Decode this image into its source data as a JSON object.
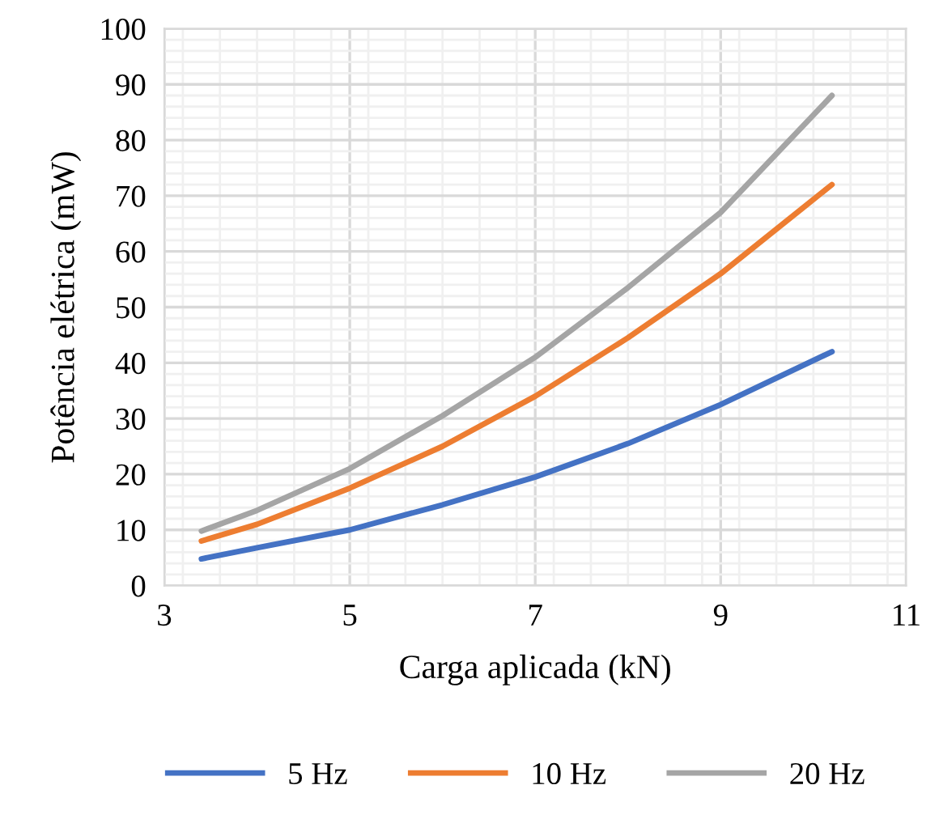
{
  "chart_data": {
    "type": "line",
    "xlabel": "Carga aplicada (kN)",
    "ylabel": "Potência elétrica (mW)",
    "x": [
      3.4,
      4,
      5,
      6,
      7,
      8,
      9,
      10.2
    ],
    "series": [
      {
        "name": "5 Hz",
        "color": "#4472c4",
        "values": [
          4.8,
          6.8,
          10,
          14.5,
          19.5,
          25.5,
          32.5,
          42
        ]
      },
      {
        "name": "10 Hz",
        "color": "#ed7d31",
        "values": [
          8,
          11,
          17.5,
          25,
          34,
          44.5,
          56,
          72
        ]
      },
      {
        "name": "20 Hz",
        "color": "#a5a5a5",
        "values": [
          9.8,
          13.5,
          21,
          30.5,
          41,
          53.5,
          67,
          88
        ]
      }
    ],
    "xlim": [
      3,
      11
    ],
    "xticks": [
      3,
      5,
      7,
      9,
      11
    ],
    "ylim": [
      0,
      100
    ],
    "yticks": [
      0,
      10,
      20,
      30,
      40,
      50,
      60,
      70,
      80,
      90,
      100
    ],
    "grid": true,
    "legend": "bottom",
    "marker": "none",
    "line_style": "solid"
  }
}
